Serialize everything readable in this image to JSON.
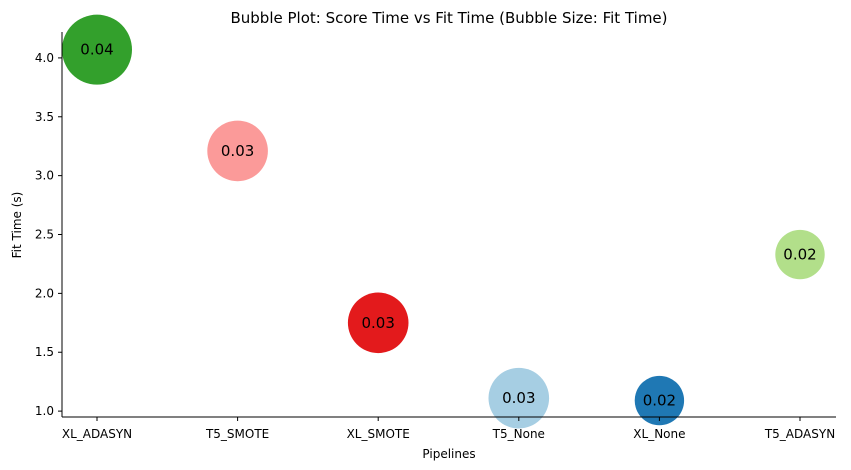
{
  "chart_data": {
    "type": "scatter",
    "title": "Bubble Plot: Score Time vs Fit Time (Bubble Size: Fit Time)",
    "xlabel": "Pipelines",
    "ylabel": "Fit Time (s)",
    "categories": [
      "XL_ADASYN",
      "T5_SMOTE",
      "XL_SMOTE",
      "T5_None",
      "XL_None",
      "T5_ADASYN"
    ],
    "y": [
      4.07,
      3.21,
      1.75,
      1.11,
      1.09,
      2.33
    ],
    "bubble_labels": [
      "0.04",
      "0.03",
      "0.03",
      "0.03",
      "0.02",
      "0.02"
    ],
    "bubble_size": [
      0.04,
      0.03,
      0.03,
      0.03,
      0.02,
      0.02
    ],
    "colors": [
      "#33a02c",
      "#fb9a99",
      "#e31a1c",
      "#a6cee3",
      "#1f78b4",
      "#b2df8a"
    ],
    "yticks": [
      1.0,
      1.5,
      2.0,
      2.5,
      3.0,
      3.5,
      4.0
    ],
    "ytick_labels": [
      "1.0",
      "1.5",
      "2.0",
      "2.5",
      "3.0",
      "3.5",
      "4.0"
    ],
    "ylim": [
      0.95,
      4.22
    ],
    "grid": false,
    "legend": "none"
  }
}
